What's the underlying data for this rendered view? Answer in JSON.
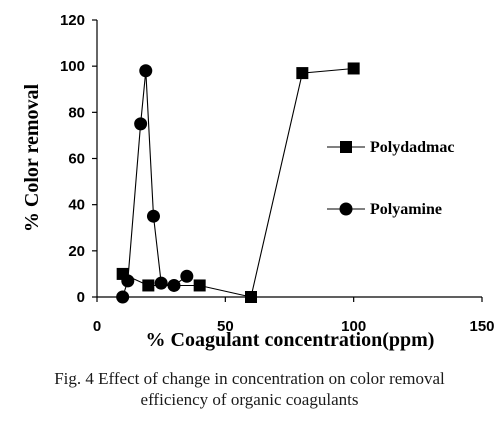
{
  "chart_data": {
    "type": "line",
    "title": "",
    "xlabel": "% Coagulant concentration(ppm)",
    "ylabel": "% Color removal",
    "xlim": [
      0,
      150
    ],
    "ylim": [
      0,
      120
    ],
    "xticks": [
      "0",
      "50",
      "100",
      "150"
    ],
    "yticks": [
      "0",
      "20",
      "40",
      "60",
      "80",
      "100",
      "120"
    ],
    "grid": false,
    "legend_position": "right",
    "series": [
      {
        "name": "Polydadmac",
        "marker": "square",
        "x": [
          10,
          20,
          40,
          60,
          80,
          100
        ],
        "y": [
          10,
          5,
          5,
          0,
          97,
          99
        ]
      },
      {
        "name": "Polyamine",
        "marker": "circle",
        "x": [
          10,
          12,
          17,
          19,
          22,
          25,
          30,
          35
        ],
        "y": [
          0,
          7,
          75,
          98,
          35,
          6,
          5,
          9
        ]
      }
    ]
  },
  "caption": {
    "line1": "Fig. 4 Effect of change in concentration on color removal",
    "line2": "efficiency of organic coagulants"
  }
}
